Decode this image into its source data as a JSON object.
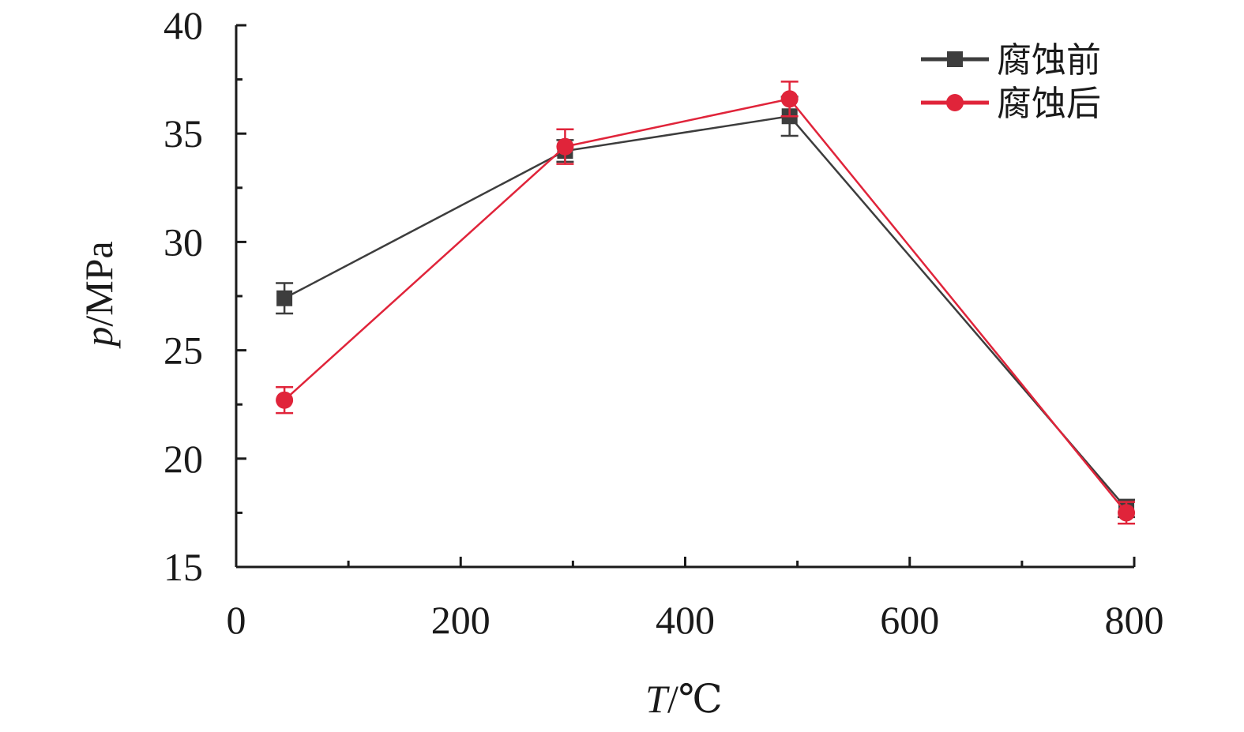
{
  "chart_data": {
    "type": "line",
    "xlabel": {
      "var": "T",
      "unit": "/℃"
    },
    "ylabel": {
      "var": "p",
      "unit": "/MPa"
    },
    "xlim": [
      0,
      800
    ],
    "ylim": [
      15,
      40
    ],
    "xticks": [
      0,
      200,
      400,
      600,
      800
    ],
    "yticks": [
      15,
      20,
      25,
      30,
      35,
      40
    ],
    "x_minor_step": 100,
    "y_minor_step": 2.5,
    "grid": false,
    "legend_position": "top-right",
    "series": [
      {
        "name": "腐蚀前",
        "color": "#3d3d3d",
        "marker": "square",
        "x": [
          43,
          293,
          493,
          793
        ],
        "y": [
          27.4,
          34.2,
          35.8,
          17.7
        ],
        "err": [
          0.7,
          0.5,
          0.9,
          0.4
        ]
      },
      {
        "name": "腐蚀后",
        "color": "#e0243a",
        "marker": "circle",
        "x": [
          43,
          293,
          493,
          793
        ],
        "y": [
          22.7,
          34.4,
          36.6,
          17.5
        ],
        "err": [
          0.6,
          0.8,
          0.8,
          0.5
        ]
      }
    ]
  }
}
